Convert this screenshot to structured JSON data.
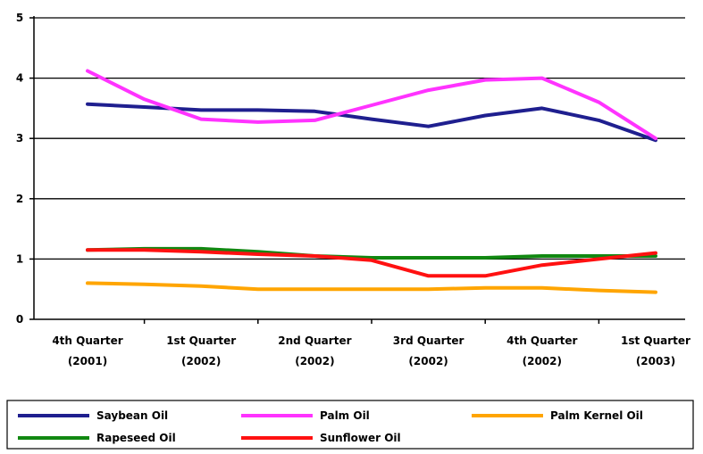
{
  "chart_data": {
    "type": "line",
    "categories": [
      [
        "4th Quarter",
        "(2001)"
      ],
      [
        "1st Quarter",
        "(2002)"
      ],
      [
        "2nd Quarter",
        "(2002)"
      ],
      [
        "3rd Quarter",
        "(2002)"
      ],
      [
        "4th Quarter",
        "(2002)"
      ],
      [
        "1st Quarter",
        "(2003)"
      ]
    ],
    "x": [
      0,
      0.5,
      1,
      1.5,
      2,
      2.5,
      3,
      3.5,
      4,
      4.5,
      5
    ],
    "ylim": [
      0,
      5
    ],
    "yticks": [
      0,
      1,
      2,
      3,
      4,
      5
    ],
    "grid": true,
    "legend_position": "bottom",
    "series": [
      {
        "name": "Saybean Oil",
        "color": "#1f1f8f",
        "values": [
          3.57,
          3.52,
          3.47,
          3.47,
          3.45,
          3.32,
          3.2,
          3.38,
          3.5,
          3.3,
          2.97
        ]
      },
      {
        "name": "Palm Oil",
        "color": "#ff33ff",
        "values": [
          4.12,
          3.65,
          3.32,
          3.27,
          3.3,
          3.55,
          3.8,
          3.97,
          4.0,
          3.6,
          3.0
        ]
      },
      {
        "name": "Palm Kernel Oil",
        "color": "#ffa500",
        "values": [
          0.6,
          0.58,
          0.55,
          0.5,
          0.5,
          0.5,
          0.5,
          0.52,
          0.52,
          0.48,
          0.45
        ]
      },
      {
        "name": "Rapeseed Oil",
        "color": "#118811",
        "values": [
          1.15,
          1.17,
          1.17,
          1.12,
          1.05,
          1.02,
          1.02,
          1.02,
          1.05,
          1.05,
          1.05
        ]
      },
      {
        "name": "Sunflower Oil",
        "color": "#ff1111",
        "values": [
          1.15,
          1.15,
          1.12,
          1.08,
          1.05,
          0.98,
          0.72,
          0.72,
          0.9,
          1.0,
          1.1
        ]
      }
    ]
  }
}
